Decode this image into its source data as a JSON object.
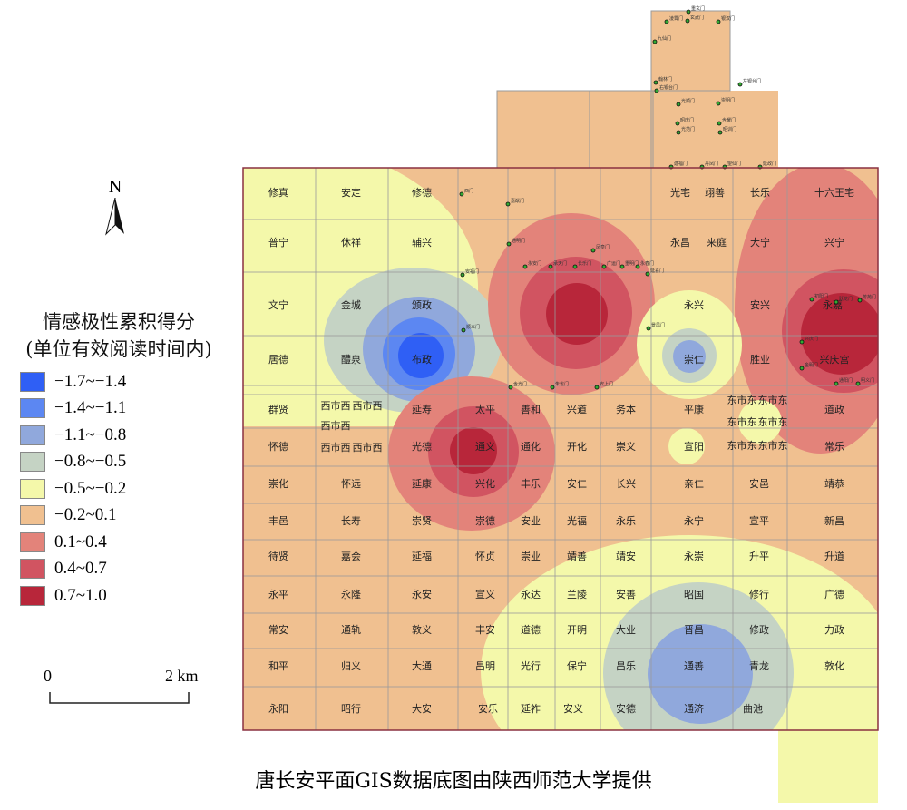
{
  "legend": {
    "title_line1": "情感极性累积得分",
    "title_line2": "(单位有效阅读时间内)",
    "items": [
      {
        "label": "−1.7~−1.4",
        "color": "#2f5ff5"
      },
      {
        "label": "−1.4~−1.1",
        "color": "#5c87f2"
      },
      {
        "label": "−1.1~−0.8",
        "color": "#90a8dc"
      },
      {
        "label": "−0.8~−0.5",
        "color": "#c5d3c4"
      },
      {
        "label": "−0.5~−0.2",
        "color": "#f4f8aa"
      },
      {
        "label": "−0.2~0.1",
        "color": "#f0c090"
      },
      {
        "label": "0.1~0.4",
        "color": "#e3837a"
      },
      {
        "label": "0.4~0.7",
        "color": "#d15461"
      },
      {
        "label": "0.7~1.0",
        "color": "#b8263a"
      }
    ]
  },
  "north": {
    "label": "N"
  },
  "scale": {
    "start": "0",
    "end": "2 km"
  },
  "caption": "唐长安平面GIS数据底图由陕西师范大学提供",
  "wards": [
    [
      "修真",
      "安定",
      "修德",
      "",
      "",
      "",
      "",
      "光宅",
      "翊善",
      "长乐",
      "十六王宅"
    ],
    [
      "普宁",
      "休祥",
      "辅兴",
      "永昌",
      "来庭",
      "大宁",
      "兴宁"
    ],
    [
      "文宁",
      "金城",
      "颁政",
      "永兴",
      "安兴",
      "永嘉"
    ],
    [
      "居德",
      "醴泉",
      "布政",
      "崇仁",
      "胜业",
      "兴庆宫"
    ],
    [
      "群贤",
      "延寿",
      "太平",
      "善和",
      "兴道",
      "务本",
      "平康",
      "道政"
    ],
    [
      "怀德",
      "光德",
      "通义",
      "通化",
      "开化",
      "崇义",
      "宣阳",
      "常乐"
    ],
    [
      "崇化",
      "怀远",
      "延康",
      "兴化",
      "丰乐",
      "安仁",
      "长兴",
      "亲仁",
      "安邑",
      "靖恭"
    ],
    [
      "丰邑",
      "长寿",
      "崇贤",
      "崇德",
      "安业",
      "光福",
      "永乐",
      "永宁",
      "宣平",
      "新昌"
    ],
    [
      "待贤",
      "嘉会",
      "延福",
      "怀贞",
      "崇业",
      "靖善",
      "靖安",
      "永崇",
      "升平",
      "升道"
    ],
    [
      "永平",
      "永隆",
      "永安",
      "宣义",
      "永达",
      "兰陵",
      "安善",
      "昭国",
      "修行",
      "广德"
    ],
    [
      "常安",
      "通轨",
      "敦义",
      "丰安",
      "道德",
      "开明",
      "大业",
      "晋昌",
      "修政",
      "力政"
    ],
    [
      "和平",
      "归义",
      "大通",
      "昌明",
      "光行",
      "保宁",
      "昌乐",
      "通善",
      "青龙",
      "敦化"
    ],
    [
      "永阳",
      "昭行",
      "大安",
      "安乐",
      "延祚",
      "安义",
      "安德",
      "通济",
      "曲池"
    ]
  ],
  "markets": {
    "west": "西市",
    "east": "东市"
  },
  "gates": [
    "重玄门",
    "凌霄门",
    "玄武门",
    "银汉门",
    "九仙门",
    "翰林门",
    "右银台门",
    "左银台门",
    "光顺门",
    "崇明门",
    "昭庆门",
    "含耀门",
    "光范门",
    "昭训门",
    "建福门",
    "丹凤门",
    "望仙门",
    "延政门",
    "西门",
    "嘉猷门",
    "通明门",
    "凤皇门",
    "安福门",
    "永安门",
    "承天门",
    "长乐门",
    "广运门",
    "重明门",
    "永春门",
    "延喜门",
    "顺义门",
    "景风门",
    "含光门",
    "朱雀门",
    "安上门",
    "兴庆门",
    "金明门",
    "通阳门",
    "明义门",
    "初阳门",
    "跃龙门",
    "芳苑门"
  ]
}
